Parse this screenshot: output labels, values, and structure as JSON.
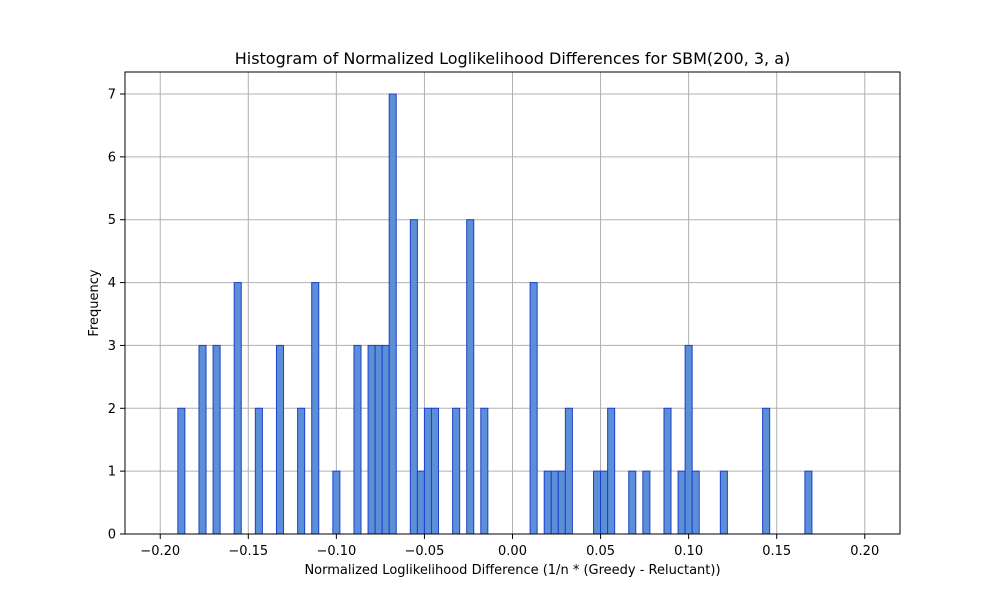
{
  "chart_data": {
    "type": "bar",
    "title": "Histogram of Normalized Loglikelihood Differences for SBM(200, 3, a)",
    "xlabel": "Normalized Loglikelihood Difference (1/n * (Greedy - Reluctant))",
    "ylabel": "Frequency",
    "xlim": [
      -0.22,
      0.22
    ],
    "ylim": [
      0,
      7.35
    ],
    "x_ticks": [
      -0.2,
      -0.15,
      -0.1,
      -0.05,
      0.0,
      0.05,
      0.1,
      0.15,
      0.2
    ],
    "x_tick_labels": [
      "−0.20",
      "−0.15",
      "−0.10",
      "−0.05",
      "0.00",
      "0.05",
      "0.10",
      "0.15",
      "0.20"
    ],
    "y_ticks": [
      0,
      1,
      2,
      3,
      4,
      5,
      6,
      7
    ],
    "y_tick_labels": [
      "0",
      "1",
      "2",
      "3",
      "4",
      "5",
      "6",
      "7"
    ],
    "grid": true,
    "bin_range": [
      -0.2,
      0.2
    ],
    "bin_count": 100,
    "bin_width": 0.004,
    "bars": [
      {
        "x": -0.19,
        "count": 2
      },
      {
        "x": -0.178,
        "count": 3
      },
      {
        "x": -0.17,
        "count": 3
      },
      {
        "x": -0.158,
        "count": 4
      },
      {
        "x": -0.146,
        "count": 2
      },
      {
        "x": -0.134,
        "count": 3
      },
      {
        "x": -0.122,
        "count": 2
      },
      {
        "x": -0.114,
        "count": 4
      },
      {
        "x": -0.102,
        "count": 1
      },
      {
        "x": -0.09,
        "count": 3
      },
      {
        "x": -0.082,
        "count": 3
      },
      {
        "x": -0.078,
        "count": 3
      },
      {
        "x": -0.074,
        "count": 3
      },
      {
        "x": -0.07,
        "count": 7
      },
      {
        "x": -0.058,
        "count": 5
      },
      {
        "x": -0.054,
        "count": 1
      },
      {
        "x": -0.05,
        "count": 2
      },
      {
        "x": -0.046,
        "count": 2
      },
      {
        "x": -0.034,
        "count": 2
      },
      {
        "x": -0.026,
        "count": 5
      },
      {
        "x": -0.018,
        "count": 2
      },
      {
        "x": 0.01,
        "count": 4
      },
      {
        "x": 0.018,
        "count": 1
      },
      {
        "x": 0.022,
        "count": 1
      },
      {
        "x": 0.026,
        "count": 1
      },
      {
        "x": 0.03,
        "count": 2
      },
      {
        "x": 0.046,
        "count": 1
      },
      {
        "x": 0.05,
        "count": 1
      },
      {
        "x": 0.054,
        "count": 2
      },
      {
        "x": 0.066,
        "count": 1
      },
      {
        "x": 0.074,
        "count": 1
      },
      {
        "x": 0.086,
        "count": 2
      },
      {
        "x": 0.094,
        "count": 1
      },
      {
        "x": 0.098,
        "count": 3
      },
      {
        "x": 0.102,
        "count": 1
      },
      {
        "x": 0.118,
        "count": 1
      },
      {
        "x": 0.142,
        "count": 2
      },
      {
        "x": 0.166,
        "count": 1
      }
    ],
    "bar_fill_color": "#5b8fd6",
    "bar_edge_color": "#1f3fcf",
    "grid_color": "#b0b0b0"
  }
}
